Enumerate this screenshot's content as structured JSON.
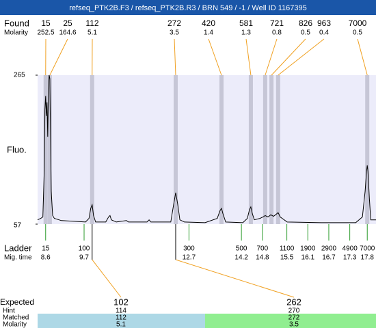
{
  "title": "refseq_PTK2B.F3 / refseq_PTK2B.R3 / BRN 549 / -1 / Well ID 1167395",
  "chart_data": {
    "type": "line",
    "ylabel": "Fluo.",
    "color": "#000000",
    "xlim": [
      8.37,
      18.05
    ],
    "ylim": [
      57,
      265
    ],
    "yticks": [
      57,
      265
    ],
    "x": [
      8.37,
      8.46,
      8.52,
      8.56,
      8.58,
      8.6,
      8.62,
      8.64,
      8.66,
      8.68,
      8.7,
      8.72,
      8.74,
      8.76,
      8.8,
      8.85,
      9.05,
      9.74,
      9.84,
      9.89,
      9.93,
      9.97,
      10.03,
      10.32,
      10.4,
      10.44,
      10.48,
      10.62,
      10.91,
      10.97,
      11.5,
      11.56,
      11.61,
      12.18,
      12.26,
      12.32,
      12.38,
      12.44,
      12.57,
      13.16,
      13.51,
      13.59,
      13.63,
      13.67,
      13.75,
      14.24,
      14.37,
      14.43,
      14.47,
      14.51,
      14.57,
      14.73,
      14.82,
      14.88,
      14.96,
      15.04,
      15.12,
      15.2,
      15.25,
      15.31,
      15.51,
      16.49,
      17.47,
      17.66,
      17.74,
      17.78,
      17.8,
      17.82,
      17.86,
      17.9,
      18.05
    ],
    "values": [
      63,
      65,
      67,
      131,
      217,
      236,
      208,
      227,
      179,
      246,
      265,
      260,
      179,
      103,
      69,
      65,
      62,
      60,
      65,
      79,
      84,
      69,
      60,
      60,
      67,
      69,
      63,
      60,
      62,
      60,
      60,
      63,
      60,
      60,
      84,
      101,
      84,
      63,
      60,
      59,
      65,
      76,
      79,
      72,
      60,
      59,
      65,
      77,
      81,
      72,
      63,
      65,
      67,
      69,
      67,
      70,
      68,
      71,
      73,
      67,
      60,
      59,
      59,
      67,
      103,
      131,
      139,
      131,
      93,
      63,
      63
    ]
  },
  "found": {
    "label": "Found",
    "molarity_label": "Molarity",
    "peaks": [
      {
        "size": 15,
        "molarity": 252.5,
        "mig_time": 8.6
      },
      {
        "size": 25,
        "molarity": 164.6,
        "mig_time": 8.72
      },
      {
        "size": 112,
        "molarity": 5.1,
        "mig_time": 9.93
      },
      {
        "size": 272,
        "molarity": 3.5,
        "mig_time": 12.32
      },
      {
        "size": 420,
        "molarity": 1.4,
        "mig_time": 13.63
      },
      {
        "size": 581,
        "molarity": 1.3,
        "mig_time": 14.47
      },
      {
        "size": 721,
        "molarity": 0.8,
        "mig_time": 14.88
      },
      {
        "size": 826,
        "molarity": 0.5,
        "mig_time": 15.06
      },
      {
        "size": 963,
        "molarity": 0.4,
        "mig_time": 15.25
      },
      {
        "size": 7000,
        "molarity": 0.5,
        "mig_time": 17.8
      }
    ]
  },
  "ladder": {
    "label": "Ladder",
    "mig_time_label": "Mig. time",
    "sizes": [
      15,
      100,
      300,
      500,
      700,
      1100,
      1900,
      2900,
      4900,
      7000
    ],
    "mig_times": [
      8.6,
      9.7,
      12.7,
      14.2,
      14.8,
      15.5,
      16.1,
      16.7,
      17.3,
      17.8
    ]
  },
  "expected": {
    "labels": [
      "Expected",
      "Hint",
      "Matched",
      "Molarity"
    ],
    "items": [
      {
        "expected": 102,
        "hint": 114,
        "matched": 112,
        "molarity": 5.1
      },
      {
        "expected": 262,
        "hint": 270,
        "matched": 272,
        "molarity": 3.5
      }
    ]
  }
}
